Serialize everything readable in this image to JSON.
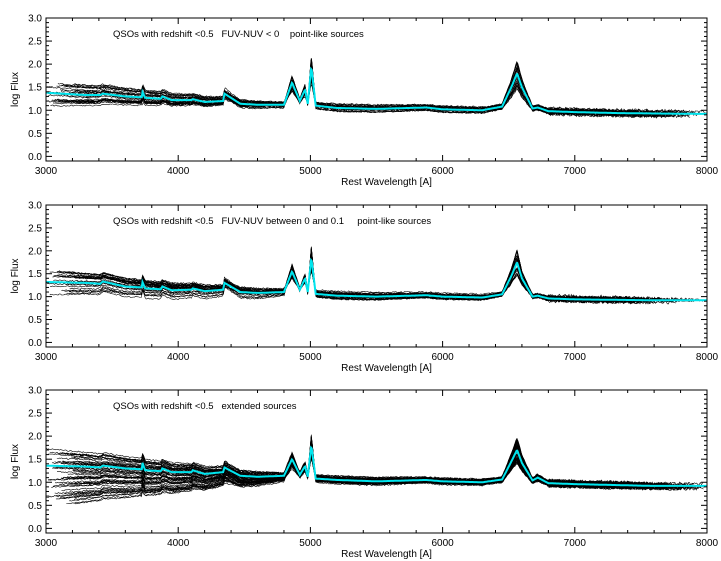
{
  "chart_data": [
    {
      "type": "line",
      "annotation": "QSOs with redshift <0.5   FUV-NUV < 0    point-like sources",
      "xlabel": "Rest Wavelength [A]",
      "ylabel": "log Flux",
      "xlim": [
        3000,
        8000
      ],
      "ylim": [
        -0.1,
        3.0
      ],
      "x_ticks": [
        3000,
        4000,
        5000,
        6000,
        7000,
        8000
      ],
      "y_ticks": [
        "0.0",
        "0.5",
        "1.0",
        "1.5",
        "2.0",
        "2.5",
        "3.0"
      ],
      "grid": false,
      "colors": {
        "individual_spectra": "#000000",
        "mean_spectrum": "#00e5ee"
      },
      "series": [
        {
          "kind": "mean",
          "x": [
            3000,
            3300,
            3410,
            3430,
            3600,
            3727,
            3730,
            3750,
            3869,
            3880,
            3950,
            4101,
            4110,
            4200,
            4340,
            4350,
            4470,
            4600,
            4800,
            4861,
            4920,
            4959,
            4980,
            5007,
            5040,
            5200,
            5500,
            5876,
            6000,
            6300,
            6450,
            6520,
            6563,
            6600,
            6680,
            6720,
            6800,
            7000,
            7300,
            7600,
            8000
          ],
          "y": [
            1.38,
            1.33,
            1.33,
            1.36,
            1.3,
            1.28,
            1.4,
            1.27,
            1.25,
            1.3,
            1.22,
            1.22,
            1.24,
            1.18,
            1.2,
            1.36,
            1.14,
            1.12,
            1.12,
            1.6,
            1.2,
            1.45,
            1.14,
            1.95,
            1.1,
            1.05,
            1.03,
            1.06,
            1.02,
            1.0,
            1.08,
            1.5,
            1.8,
            1.5,
            1.04,
            1.06,
            0.98,
            0.96,
            0.94,
            0.93,
            0.92
          ]
        }
      ],
      "individual_spectra_count": 30
    },
    {
      "type": "line",
      "annotation": "QSOs with redshift <0.5   FUV-NUV between 0 and 0.1     point-like sources",
      "xlabel": "Rest Wavelength [A]",
      "ylabel": "log Flux",
      "xlim": [
        3000,
        8000
      ],
      "ylim": [
        -0.1,
        3.0
      ],
      "x_ticks": [
        3000,
        4000,
        5000,
        6000,
        7000,
        8000
      ],
      "y_ticks": [
        "0.0",
        "0.5",
        "1.0",
        "1.5",
        "2.0",
        "2.5",
        "3.0"
      ],
      "grid": false,
      "colors": {
        "individual_spectra": "#000000",
        "mean_spectrum": "#00e5ee"
      },
      "series": [
        {
          "kind": "mean",
          "x": [
            3000,
            3300,
            3410,
            3430,
            3600,
            3727,
            3730,
            3750,
            3869,
            3880,
            3950,
            4101,
            4110,
            4200,
            4340,
            4350,
            4470,
            4600,
            4800,
            4861,
            4920,
            4959,
            4980,
            5007,
            5040,
            5200,
            5500,
            5876,
            6000,
            6300,
            6450,
            6520,
            6563,
            6600,
            6680,
            6720,
            6800,
            7000,
            7300,
            7600,
            8000
          ],
          "y": [
            1.32,
            1.3,
            1.28,
            1.33,
            1.22,
            1.2,
            1.32,
            1.18,
            1.16,
            1.22,
            1.14,
            1.15,
            1.18,
            1.12,
            1.15,
            1.3,
            1.1,
            1.08,
            1.1,
            1.55,
            1.15,
            1.4,
            1.1,
            1.85,
            1.06,
            1.02,
            1.0,
            1.03,
            1.0,
            0.98,
            1.05,
            1.45,
            1.75,
            1.4,
            1.0,
            1.02,
            0.96,
            0.94,
            0.93,
            0.92,
            0.92
          ]
        }
      ],
      "individual_spectra_count": 30
    },
    {
      "type": "line",
      "annotation": "QSOs with redshift <0.5   extended sources",
      "xlabel": "Rest Wavelength [A]",
      "ylabel": "log Flux",
      "xlim": [
        3000,
        8000
      ],
      "ylim": [
        -0.1,
        3.0
      ],
      "x_ticks": [
        3000,
        4000,
        5000,
        6000,
        7000,
        8000
      ],
      "y_ticks": [
        "0.0",
        "0.5",
        "1.0",
        "1.5",
        "2.0",
        "2.5",
        "3.0"
      ],
      "grid": false,
      "colors": {
        "individual_spectra": "#000000",
        "mean_spectrum": "#00e5ee"
      },
      "series": [
        {
          "kind": "mean",
          "x": [
            3000,
            3300,
            3410,
            3430,
            3600,
            3727,
            3730,
            3750,
            3869,
            3880,
            3950,
            4101,
            4110,
            4200,
            4340,
            4350,
            4470,
            4600,
            4800,
            4861,
            4920,
            4959,
            4980,
            5007,
            5040,
            5200,
            5500,
            5876,
            6000,
            6300,
            6450,
            6520,
            6563,
            6600,
            6680,
            6720,
            6800,
            7000,
            7300,
            7600,
            8000
          ],
          "y": [
            1.36,
            1.34,
            1.32,
            1.36,
            1.3,
            1.28,
            1.42,
            1.26,
            1.24,
            1.3,
            1.22,
            1.22,
            1.26,
            1.18,
            1.22,
            1.32,
            1.14,
            1.12,
            1.14,
            1.5,
            1.16,
            1.35,
            1.12,
            1.8,
            1.08,
            1.05,
            1.02,
            1.05,
            1.02,
            1.0,
            1.06,
            1.45,
            1.7,
            1.42,
            1.04,
            1.1,
            0.98,
            0.96,
            0.94,
            0.92,
            0.92
          ]
        }
      ],
      "individual_spectra_count": 60
    }
  ]
}
